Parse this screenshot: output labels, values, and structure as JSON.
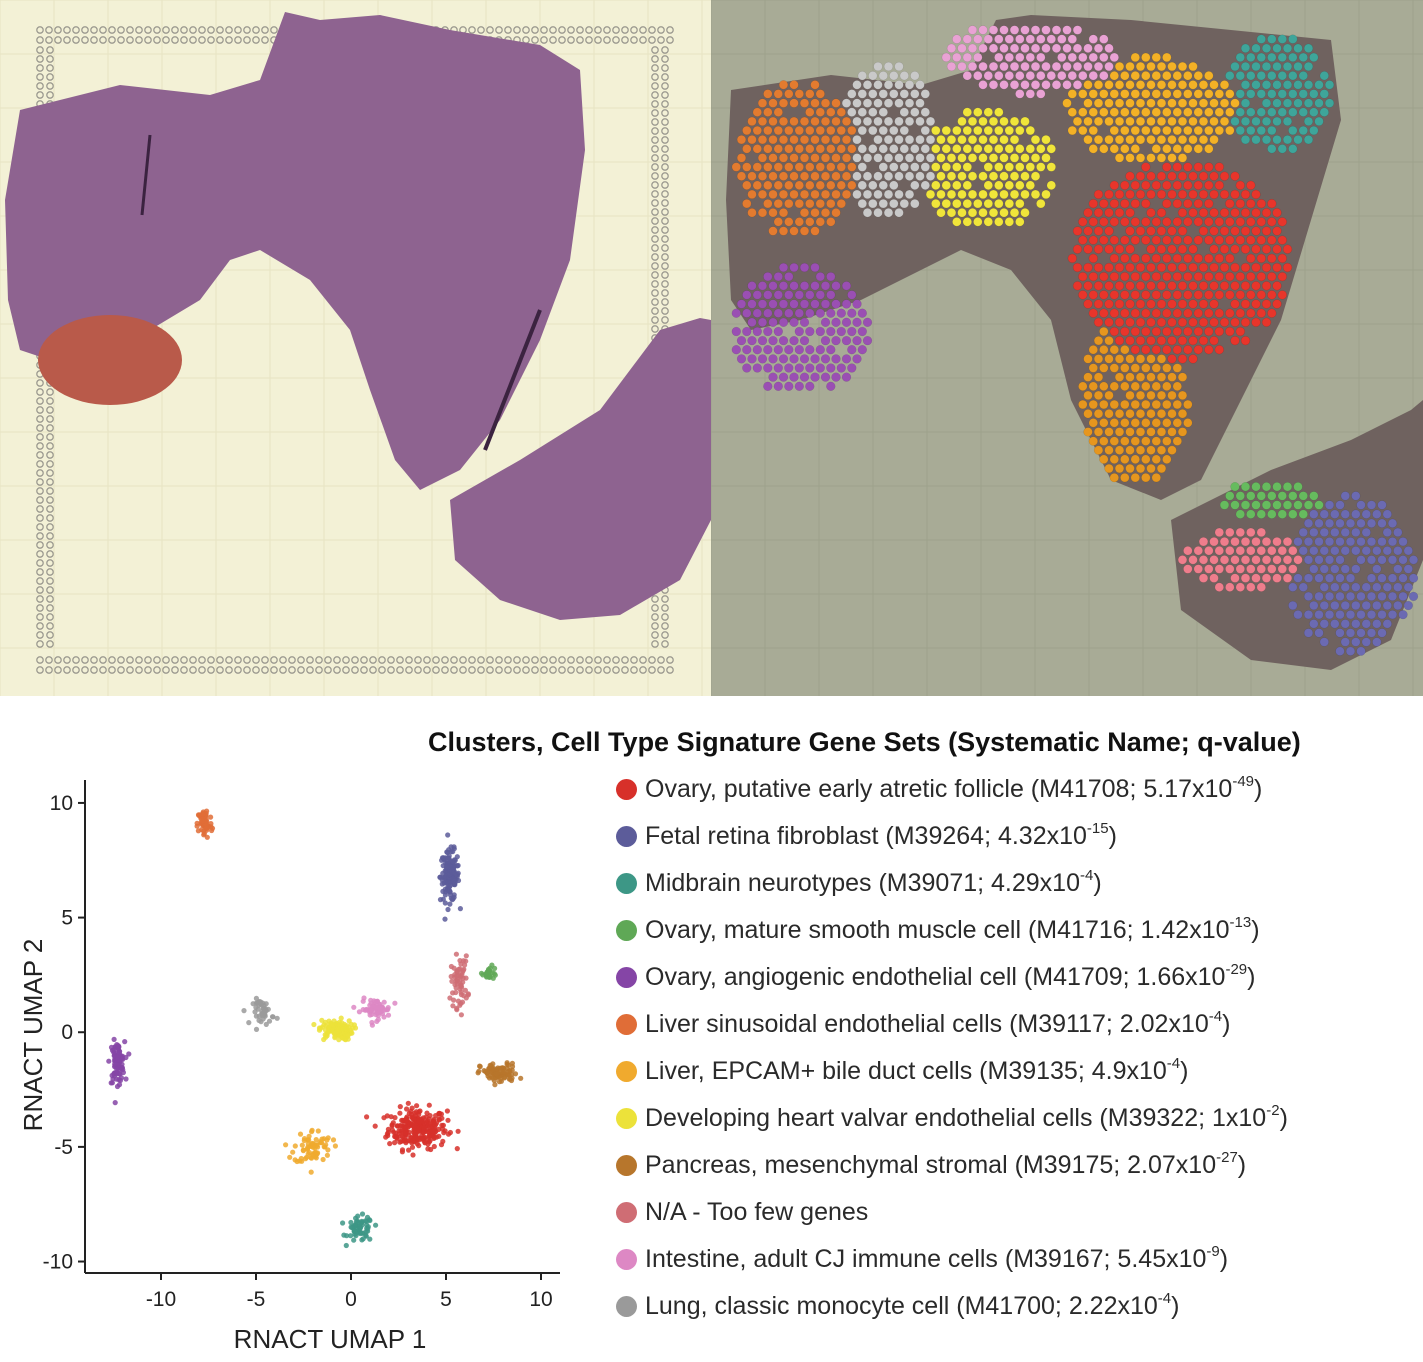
{
  "legend": {
    "title": "Clusters, Cell Type Signature Gene Sets (Systematic Name; q-value)",
    "items": [
      {
        "color": "#d7302a",
        "label": "Ovary, putative early atretic follicle",
        "code": "M41708",
        "q_mantissa": "5.17",
        "q_exp": "-49",
        "text_before": "Ovary, putative early atretic follicle (M41708; 5.17x10",
        "text_after": ")"
      },
      {
        "color": "#5c5c9a",
        "label": "Fetal retina fibroblast",
        "code": "M39264",
        "q_mantissa": "4.32",
        "q_exp": "-15",
        "text_before": "Fetal retina fibroblast (M39264; 4.32x10",
        "text_after": ")"
      },
      {
        "color": "#3d9786",
        "label": "Midbrain neurotypes",
        "code": "M39071",
        "q_mantissa": "4.29",
        "q_exp": "-4",
        "text_before": "Midbrain neurotypes (M39071; 4.29x10",
        "text_after": ")"
      },
      {
        "color": "#5fa856",
        "label": "Ovary, mature smooth muscle cell",
        "code": "M41716",
        "q_mantissa": "1.42",
        "q_exp": "-13",
        "text_before": "Ovary, mature smooth muscle cell (M41716; 1.42x10",
        "text_after": ")"
      },
      {
        "color": "#8545a6",
        "label": "Ovary, angiogenic endothelial cell",
        "code": "M41709",
        "q_mantissa": "1.66",
        "q_exp": "-29",
        "text_before": "Ovary, angiogenic endothelial cell (M41709; 1.66x10",
        "text_after": ")"
      },
      {
        "color": "#e06d37",
        "label": "Liver sinusoidal endothelial cells",
        "code": "M39117",
        "q_mantissa": "2.02",
        "q_exp": "-4",
        "text_before": "Liver sinusoidal endothelial cells (M39117; 2.02x10",
        "text_after": ")"
      },
      {
        "color": "#f0aa2e",
        "label": "Liver, EPCAM+ bile duct cells",
        "code": "M39135",
        "q_mantissa": "4.9",
        "q_exp": "-4",
        "text_before": "Liver, EPCAM+ bile duct cells (M39135; 4.9x10",
        "text_after": ")"
      },
      {
        "color": "#ece23a",
        "label": "Developing heart valvar endothelial cells",
        "code": "M39322",
        "q_mantissa": "1",
        "q_exp": "-2",
        "text_before": "Developing heart valvar endothelial cells (M39322; 1x10",
        "text_after": ")"
      },
      {
        "color": "#b7762c",
        "label": "Pancreas, mesenchymal stromal",
        "code": "M39175",
        "q_mantissa": "2.07",
        "q_exp": "-27",
        "text_before": "Pancreas, mesenchymal stromal (M39175; 2.07x10",
        "text_after": ")"
      },
      {
        "color": "#cf6d74",
        "label": "N/A - Too few genes",
        "code": "",
        "q_mantissa": "",
        "q_exp": "",
        "text_before": "N/A - Too few genes",
        "text_after": ""
      },
      {
        "color": "#dd88c4",
        "label": "Intestine, adult CJ immune cells",
        "code": "M39167",
        "q_mantissa": "5.45",
        "q_exp": "-9",
        "text_before": "Intestine, adult CJ immune cells (M39167; 5.45x10",
        "text_after": ")"
      },
      {
        "color": "#9a9a9a",
        "label": "Lung, classic monocyte cell",
        "code": "M41700",
        "q_mantissa": "2.22",
        "q_exp": "-4",
        "text_before": "Lung, classic monocyte cell (M41700; 2.22x10",
        "text_after": ")"
      }
    ]
  },
  "chart_data": {
    "type": "scatter",
    "xlabel": "RNACT UMAP 1",
    "ylabel": "RNACT UMAP 2",
    "xlim": [
      -14,
      11
    ],
    "ylim": [
      -10.5,
      11
    ],
    "xticks": [
      -10,
      -5,
      0,
      5,
      10
    ],
    "yticks": [
      10,
      5,
      0,
      -5,
      -10
    ],
    "grid": false,
    "clusters": [
      {
        "name": "Ovary, putative early atretic follicle",
        "color": "#d7302a",
        "center": [
          3.5,
          -4.2
        ],
        "spread": [
          1.4,
          0.8
        ],
        "n": 260
      },
      {
        "name": "Fetal retina fibroblast",
        "color": "#5c5c9a",
        "center": [
          5.2,
          6.8
        ],
        "spread": [
          0.45,
          1.0
        ],
        "n": 150
      },
      {
        "name": "Midbrain neurotypes",
        "color": "#3d9786",
        "center": [
          0.5,
          -8.6
        ],
        "spread": [
          0.6,
          0.5
        ],
        "n": 60
      },
      {
        "name": "Ovary, mature smooth muscle cell",
        "color": "#5fa856",
        "center": [
          7.3,
          2.6
        ],
        "spread": [
          0.35,
          0.25
        ],
        "n": 25
      },
      {
        "name": "Ovary, angiogenic endothelial cell",
        "color": "#8545a6",
        "center": [
          -12.3,
          -1.3
        ],
        "spread": [
          0.35,
          0.8
        ],
        "n": 90
      },
      {
        "name": "Liver sinusoidal endothelial cells",
        "color": "#e06d37",
        "center": [
          -7.7,
          9.1
        ],
        "spread": [
          0.35,
          0.6
        ],
        "n": 60
      },
      {
        "name": "Liver, EPCAM+ bile duct cells",
        "color": "#f0aa2e",
        "center": [
          -2.0,
          -5.0
        ],
        "spread": [
          0.9,
          0.7
        ],
        "n": 70
      },
      {
        "name": "Developing heart valvar endothelial cells",
        "color": "#ece23a",
        "center": [
          -0.8,
          0.1
        ],
        "spread": [
          0.8,
          0.4
        ],
        "n": 110
      },
      {
        "name": "Pancreas, mesenchymal stromal",
        "color": "#b7762c",
        "center": [
          7.8,
          -1.8
        ],
        "spread": [
          0.9,
          0.4
        ],
        "n": 90
      },
      {
        "name": "N/A - Too few genes",
        "color": "#cf6d74",
        "center": [
          5.7,
          2.2
        ],
        "spread": [
          0.4,
          1.0
        ],
        "n": 60
      },
      {
        "name": "Intestine, adult CJ immune cells",
        "color": "#dd88c4",
        "center": [
          1.3,
          1.0
        ],
        "spread": [
          0.7,
          0.4
        ],
        "n": 70
      },
      {
        "name": "Lung, classic monocyte cell",
        "color": "#9a9a9a",
        "center": [
          -4.6,
          0.9
        ],
        "spread": [
          0.5,
          0.5
        ],
        "n": 45
      }
    ]
  }
}
